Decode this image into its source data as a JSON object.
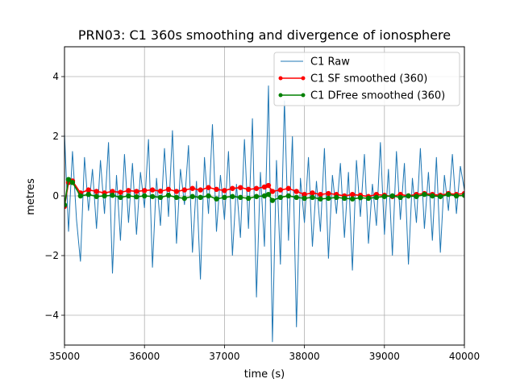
{
  "chart_data": {
    "type": "line",
    "title": "PRN03: C1 360s smoothing and divergence of ionosphere",
    "xlabel": "time (s)",
    "ylabel": "metres",
    "xlim": [
      35000,
      40000
    ],
    "ylim": [
      -5,
      5
    ],
    "xticks": [
      35000,
      36000,
      37000,
      38000,
      39000,
      40000
    ],
    "yticks": [
      -4,
      -2,
      0,
      2,
      4
    ],
    "xtick_labels": [
      "35000",
      "36000",
      "37000",
      "38000",
      "39000",
      "40000"
    ],
    "ytick_labels": [
      "−4",
      "−2",
      "0",
      "2",
      "4"
    ],
    "grid": true,
    "legend_position": "top-right",
    "series": [
      {
        "name": "C1 Raw",
        "color": "#1f77b4",
        "marker": "none",
        "x": [
          35000,
          35050,
          35100,
          35150,
          35200,
          35250,
          35300,
          35350,
          35400,
          35450,
          35500,
          35550,
          35600,
          35650,
          35700,
          35750,
          35800,
          35850,
          35900,
          35950,
          36000,
          36050,
          36100,
          36150,
          36200,
          36250,
          36300,
          36350,
          36400,
          36450,
          36500,
          36550,
          36600,
          36650,
          36700,
          36750,
          36800,
          36850,
          36900,
          36950,
          37000,
          37050,
          37100,
          37150,
          37200,
          37250,
          37300,
          37350,
          37400,
          37450,
          37500,
          37550,
          37600,
          37650,
          37700,
          37750,
          37800,
          37850,
          37900,
          37950,
          38000,
          38050,
          38100,
          38150,
          38200,
          38250,
          38300,
          38350,
          38400,
          38450,
          38500,
          38550,
          38600,
          38650,
          38700,
          38750,
          38800,
          38850,
          38900,
          38950,
          39000,
          39050,
          39100,
          39150,
          39200,
          39250,
          39300,
          39350,
          39400,
          39450,
          39500,
          39550,
          39600,
          39650,
          39700,
          39750,
          39800,
          39850,
          39900,
          39950,
          40000
        ],
        "y": [
          2.1,
          -1.2,
          1.5,
          -0.8,
          -2.2,
          1.3,
          -0.5,
          0.9,
          -1.1,
          1.2,
          -0.6,
          1.8,
          -2.6,
          0.7,
          -1.5,
          1.4,
          -0.9,
          1.1,
          -1.3,
          0.8,
          -0.4,
          1.9,
          -2.4,
          0.6,
          -1.0,
          1.6,
          -0.7,
          2.2,
          -1.6,
          0.9,
          -0.3,
          1.7,
          -1.9,
          0.5,
          -2.8,
          1.3,
          -0.6,
          2.4,
          -1.2,
          0.7,
          -0.8,
          1.5,
          -2.0,
          0.4,
          -1.4,
          1.9,
          -1.1,
          2.6,
          -3.4,
          0.8,
          -1.7,
          3.7,
          -4.9,
          1.2,
          -2.3,
          3.2,
          -1.5,
          2.0,
          -4.4,
          0.6,
          -0.9,
          1.3,
          -1.7,
          0.5,
          -1.2,
          1.6,
          -2.1,
          0.7,
          -0.6,
          1.1,
          -1.4,
          0.8,
          -2.5,
          1.2,
          -0.7,
          1.4,
          -1.6,
          0.4,
          -1.0,
          1.8,
          -1.3,
          0.9,
          -2.0,
          1.5,
          -0.8,
          1.1,
          -2.3,
          0.6,
          -0.9,
          1.6,
          -1.1,
          0.8,
          -1.5,
          1.3,
          -1.9,
          0.7,
          -0.5,
          1.4,
          -0.6,
          1.0,
          0.2
        ]
      },
      {
        "name": "C1 SF smoothed (360)",
        "color": "#ff0000",
        "marker": "circle",
        "x": [
          35000,
          35050,
          35100,
          35200,
          35300,
          35400,
          35500,
          35600,
          35700,
          35800,
          35900,
          36000,
          36100,
          36200,
          36300,
          36400,
          36500,
          36600,
          36700,
          36800,
          36900,
          37000,
          37100,
          37200,
          37300,
          37400,
          37500,
          37550,
          37600,
          37700,
          37800,
          37900,
          38000,
          38100,
          38200,
          38300,
          38400,
          38500,
          38600,
          38700,
          38800,
          38900,
          39000,
          39100,
          39200,
          39300,
          39400,
          39500,
          39600,
          39700,
          39800,
          39900,
          40000
        ],
        "y": [
          -0.35,
          0.45,
          0.5,
          0.1,
          0.2,
          0.15,
          0.1,
          0.15,
          0.12,
          0.18,
          0.15,
          0.18,
          0.2,
          0.16,
          0.22,
          0.15,
          0.2,
          0.25,
          0.2,
          0.28,
          0.22,
          0.18,
          0.25,
          0.28,
          0.22,
          0.25,
          0.3,
          0.35,
          0.15,
          0.2,
          0.25,
          0.15,
          0.05,
          0.1,
          0.05,
          0.08,
          0.05,
          0.0,
          0.05,
          0.02,
          -0.02,
          0.05,
          0.02,
          -0.02,
          0.05,
          0.0,
          0.05,
          0.08,
          0.05,
          0.02,
          0.08,
          0.05,
          0.08
        ]
      },
      {
        "name": "C1 DFree smoothed (360)",
        "color": "#008000",
        "marker": "circle",
        "x": [
          35000,
          35050,
          35100,
          35200,
          35300,
          35400,
          35500,
          35600,
          35700,
          35800,
          35900,
          36000,
          36100,
          36200,
          36300,
          36400,
          36500,
          36600,
          36700,
          36800,
          36900,
          37000,
          37100,
          37200,
          37300,
          37400,
          37500,
          37550,
          37600,
          37700,
          37800,
          37900,
          38000,
          38100,
          38200,
          38300,
          38400,
          38500,
          38600,
          38700,
          38800,
          38900,
          39000,
          39100,
          39200,
          39300,
          39400,
          39500,
          39600,
          39700,
          39800,
          39900,
          40000
        ],
        "y": [
          -0.3,
          0.55,
          0.45,
          0.0,
          0.05,
          -0.02,
          0.0,
          0.02,
          -0.05,
          0.0,
          -0.03,
          0.0,
          -0.02,
          -0.05,
          0.02,
          -0.05,
          -0.08,
          -0.02,
          -0.05,
          0.0,
          -0.1,
          -0.05,
          -0.02,
          -0.05,
          -0.08,
          -0.02,
          0.0,
          0.05,
          -0.15,
          -0.05,
          0.0,
          -0.05,
          -0.08,
          -0.05,
          -0.1,
          -0.08,
          -0.05,
          -0.08,
          -0.1,
          -0.06,
          -0.08,
          -0.05,
          -0.02,
          0.0,
          -0.05,
          0.0,
          -0.02,
          0.05,
          0.0,
          -0.02,
          0.05,
          0.0,
          0.02
        ]
      }
    ]
  }
}
